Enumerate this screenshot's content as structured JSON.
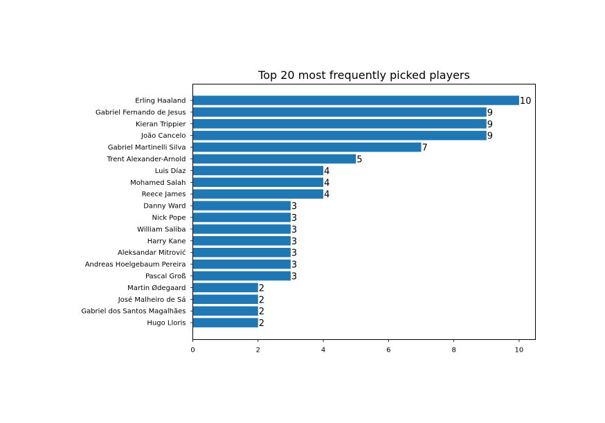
{
  "chart_data": {
    "type": "bar",
    "orientation": "horizontal",
    "title": "Top 20 most frequently picked players",
    "xlabel": "",
    "ylabel": "",
    "xlim": [
      0,
      10.5
    ],
    "x_ticks": [
      0,
      2,
      4,
      6,
      8,
      10
    ],
    "grid": false,
    "bar_color": "#1f77b4",
    "categories": [
      "Erling Haaland",
      "Gabriel Fernando de Jesus",
      "Kieran Trippier",
      "João Cancelo",
      "Gabriel Martinelli Silva",
      "Trent Alexander-Arnold",
      "Luis Díaz",
      "Mohamed Salah",
      "Reece James",
      "Danny Ward",
      "Nick Pope",
      "William Saliba",
      "Harry Kane",
      "Aleksandar Mitrović",
      "Andreas Hoelgebaum Pereira",
      "Pascal Groß",
      "Martin Ødegaard",
      "José Malheiro de Sá",
      "Gabriel dos Santos Magalhães",
      "Hugo Lloris"
    ],
    "values": [
      10,
      9,
      9,
      9,
      7,
      5,
      4,
      4,
      4,
      3,
      3,
      3,
      3,
      3,
      3,
      3,
      2,
      2,
      2,
      2
    ]
  }
}
